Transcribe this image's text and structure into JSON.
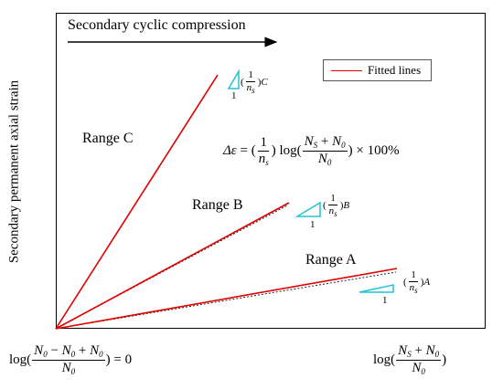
{
  "y_axis_label": "Secondary permanent axial strain",
  "top_caption": "Secondary cyclic compression",
  "legend_label": "Fitted lines",
  "ranges": {
    "a": "Range A",
    "b": "Range B",
    "c": "Range C"
  },
  "formula": {
    "delta": "Δε",
    "equals": "=",
    "one": "1",
    "n_s": "n",
    "s_sub": "s",
    "log": "log",
    "N_S": "N",
    "S_sub": "S",
    "plus": "+",
    "N_0": "N",
    "zero_sub": "0",
    "times_100": "× 100%"
  },
  "slope_labels": {
    "c": {
      "one": "1",
      "n": "n",
      "sub": "s",
      "letter": "C"
    },
    "b": {
      "one": "1",
      "n": "n",
      "sub": "s",
      "letter": "B"
    },
    "a": {
      "one": "1",
      "n": "n",
      "sub": "s",
      "letter": "A"
    }
  },
  "triangle_side_label": "1",
  "x_left_label": {
    "log": "log",
    "minus": "−",
    "plus": "+",
    "eq": "= 0"
  },
  "x_right_label": {
    "log": "log",
    "plus": "+"
  },
  "colors": {
    "fitted_line": "#e00000",
    "slope_triangle": "#22c3d6",
    "frame": "#000000"
  }
}
